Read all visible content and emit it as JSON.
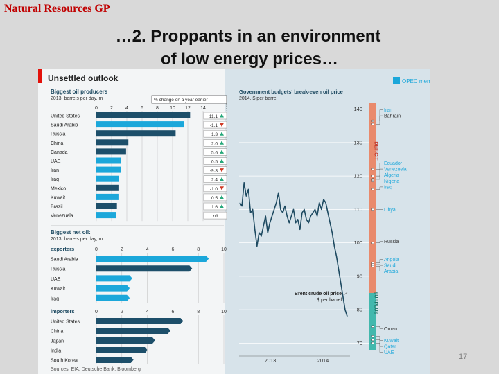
{
  "slide": {
    "brand": "Natural Resources GP",
    "title_line1": "…2. Proppants in an environment",
    "title_line2": "of low energy prices…",
    "page_number": "17"
  },
  "figure": {
    "heading": "Unsettled outlook",
    "legend": "OPEC members",
    "source": "Sources: EIA; Deutsche Bank; Bloomberg"
  },
  "colors": {
    "dark_teal": "#1d4f6a",
    "light_blue": "#1ba7da",
    "line_color": "#1e4a61",
    "deficit": "#e98a6c",
    "surplus": "#42b8ad",
    "bg": "#d7e3ea",
    "red": "#d13b26",
    "green": "#26a87a"
  },
  "chart_data": [
    {
      "type": "bar",
      "title": "Biggest oil producers",
      "subtitle": "2013, barrels per day, m",
      "annotation": "% change on a year earlier",
      "xlim": [
        0,
        14
      ],
      "xticks": [
        0,
        2,
        4,
        6,
        8,
        10,
        12,
        14
      ],
      "categories": [
        "United States",
        "Saudi Arabia",
        "Russia",
        "China",
        "Canada",
        "UAE",
        "Iran",
        "Iraq",
        "Mexico",
        "Kuwait",
        "Brazil",
        "Venezuela"
      ],
      "values": [
        12.3,
        11.5,
        10.4,
        4.2,
        3.9,
        3.2,
        3.2,
        3.0,
        2.9,
        2.9,
        2.7,
        2.6
      ],
      "opec": [
        false,
        true,
        false,
        false,
        false,
        true,
        true,
        true,
        false,
        true,
        false,
        true
      ],
      "pct_change": [
        "11.1",
        "-1.1",
        "1.3",
        "2.0",
        "5.6",
        "0.5",
        "-9.3",
        "2.4",
        "-1.0",
        "0.5",
        "1.6",
        "nil"
      ],
      "direction": [
        "up",
        "down",
        "up",
        "up",
        "up",
        "up",
        "down",
        "up",
        "down",
        "up",
        "up",
        ""
      ]
    },
    {
      "type": "bar",
      "title": "Biggest net oil:",
      "subtitle": "2013, barrels per day, m",
      "groups": [
        {
          "label": "exporters",
          "xlim": [
            0,
            10
          ],
          "xticks": [
            0,
            2,
            4,
            6,
            8,
            10
          ],
          "categories": [
            "Saudi Arabia",
            "Russia",
            "UAE",
            "Kuwait",
            "Iraq"
          ],
          "values": [
            8.6,
            7.3,
            2.6,
            2.4,
            2.4
          ],
          "opec": [
            true,
            false,
            true,
            true,
            true
          ]
        },
        {
          "label": "importers",
          "xlim": [
            0,
            10
          ],
          "xticks": [
            0,
            2,
            4,
            6,
            8,
            10
          ],
          "categories": [
            "United States",
            "China",
            "Japan",
            "India",
            "South Korea"
          ],
          "values": [
            6.6,
            5.6,
            4.4,
            3.8,
            2.7
          ],
          "opec": [
            false,
            false,
            false,
            false,
            false
          ]
        }
      ]
    },
    {
      "type": "line",
      "title": "Government budgets' break-even oil price",
      "subtitle": "2014, $ per barrel",
      "ylim": [
        68,
        142
      ],
      "yticks": [
        70,
        80,
        90,
        100,
        110,
        120,
        130,
        140
      ],
      "xticks": [
        "2013",
        "2014"
      ],
      "series_label": "Brent crude oil price\n$ per barrel",
      "deficit_label": "DEFICIT",
      "surplus_label": "SURPLUS",
      "zone_boundary": 85,
      "series": [
        {
          "name": "Brent crude oil price",
          "x": [
            0,
            0.02,
            0.04,
            0.06,
            0.08,
            0.1,
            0.12,
            0.14,
            0.16,
            0.18,
            0.2,
            0.22,
            0.24,
            0.26,
            0.28,
            0.3,
            0.32,
            0.34,
            0.36,
            0.38,
            0.4,
            0.42,
            0.44,
            0.46,
            0.48,
            0.5,
            0.52,
            0.54,
            0.56,
            0.58,
            0.6,
            0.62,
            0.64,
            0.66,
            0.68,
            0.7,
            0.72,
            0.74,
            0.76,
            0.78,
            0.8,
            0.82,
            0.84,
            0.86,
            0.88,
            0.9,
            0.92,
            0.94,
            0.96,
            0.98,
            1.0
          ],
          "y": [
            112,
            111,
            118,
            114,
            116,
            109,
            110,
            104,
            99,
            103,
            102,
            105,
            108,
            103,
            106,
            108,
            110,
            112,
            115,
            110,
            109,
            111,
            108,
            106,
            108,
            110,
            106,
            107,
            104,
            109,
            110,
            107,
            106,
            108,
            109,
            110,
            108,
            112,
            110,
            113,
            112,
            109,
            106,
            103,
            99,
            96,
            92,
            88,
            84,
            80,
            78
          ]
        }
      ],
      "breakevens": [
        {
          "country": "Iran",
          "price": 136.5
        },
        {
          "country": "Bahrain",
          "price": 135.5
        },
        {
          "country": "Ecuador",
          "price": 122
        },
        {
          "country": "Venezuela",
          "price": 120
        },
        {
          "country": "Algeria",
          "price": 119
        },
        {
          "country": "Nigeria",
          "price": 118.5
        },
        {
          "country": "Iraq",
          "price": 116
        },
        {
          "country": "Libya",
          "price": 110
        },
        {
          "country": "Russia",
          "price": 100
        },
        {
          "country": "Angola",
          "price": 94
        },
        {
          "country": "Saudi",
          "price": 93.5
        },
        {
          "country": "Arabia",
          "price": 93
        },
        {
          "country": "Oman",
          "price": 75
        },
        {
          "country": "Kuwait",
          "price": 72
        },
        {
          "country": "Qatar",
          "price": 71
        },
        {
          "country": "UAE",
          "price": 70
        }
      ]
    }
  ]
}
